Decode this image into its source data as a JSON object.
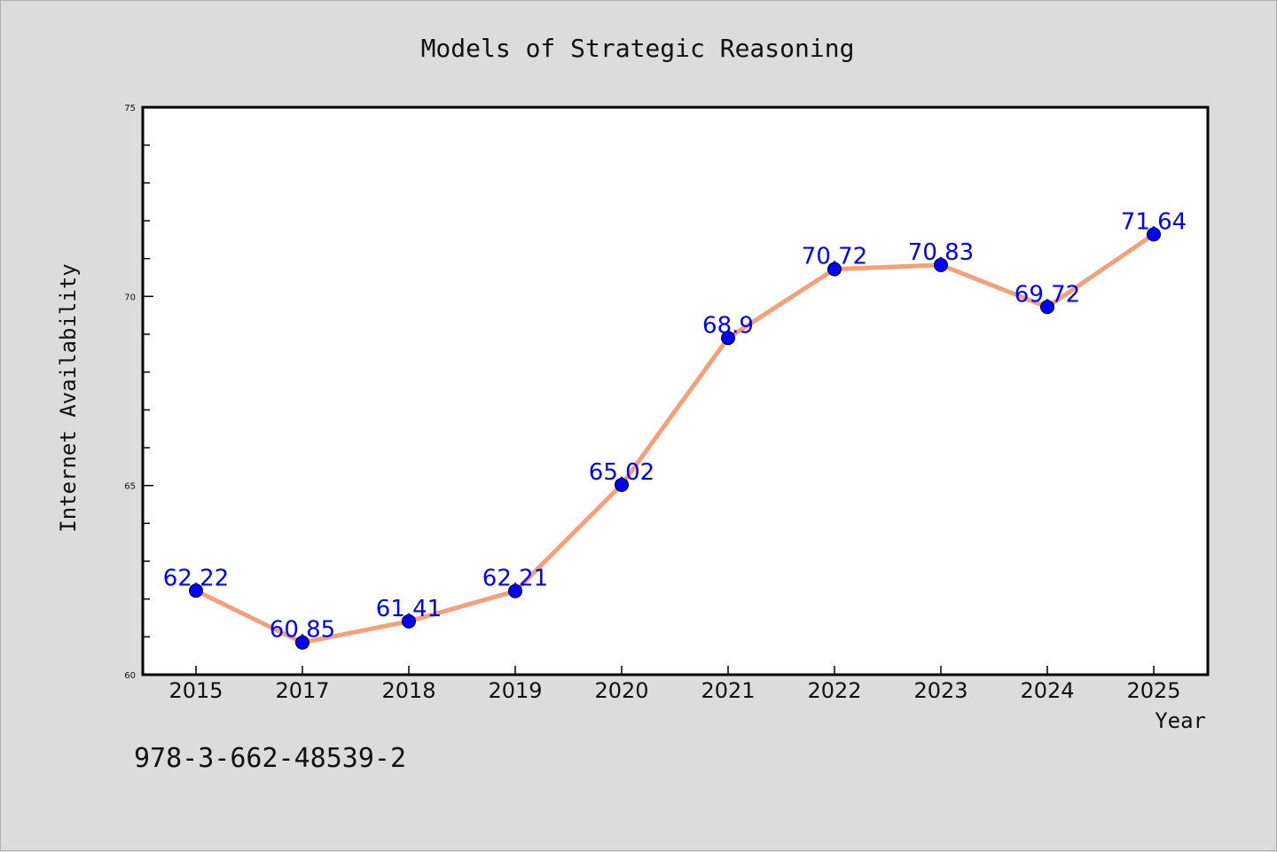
{
  "chart_data": {
    "type": "line",
    "title": "Models of Strategic Reasoning",
    "xlabel": "Year",
    "ylabel": "Internet Availability",
    "categories": [
      "2015",
      "2017",
      "2018",
      "2019",
      "2020",
      "2021",
      "2022",
      "2023",
      "2024",
      "2025"
    ],
    "series": [
      {
        "values": [
          62.22,
          60.85,
          61.41,
          62.21,
          65.02,
          68.9,
          70.72,
          70.83,
          69.72,
          71.64
        ],
        "data_labels": [
          "62.22",
          "60.85",
          "61.41",
          "62.21",
          "65.02",
          "68.9",
          "70.72",
          "70.83",
          "69.72",
          "71.64"
        ],
        "line_color": "#f4a07a",
        "marker_color": "#0000ff"
      }
    ],
    "ylim": [
      60,
      75
    ],
    "yticks": [
      "60",
      "65",
      "70",
      "75"
    ],
    "grid": false,
    "legend": "none"
  },
  "footnote": "978-3-662-48539-2",
  "colors": {
    "background": "#dcdcdc",
    "plot_area": "#ffffff",
    "label": "#0000ff"
  }
}
